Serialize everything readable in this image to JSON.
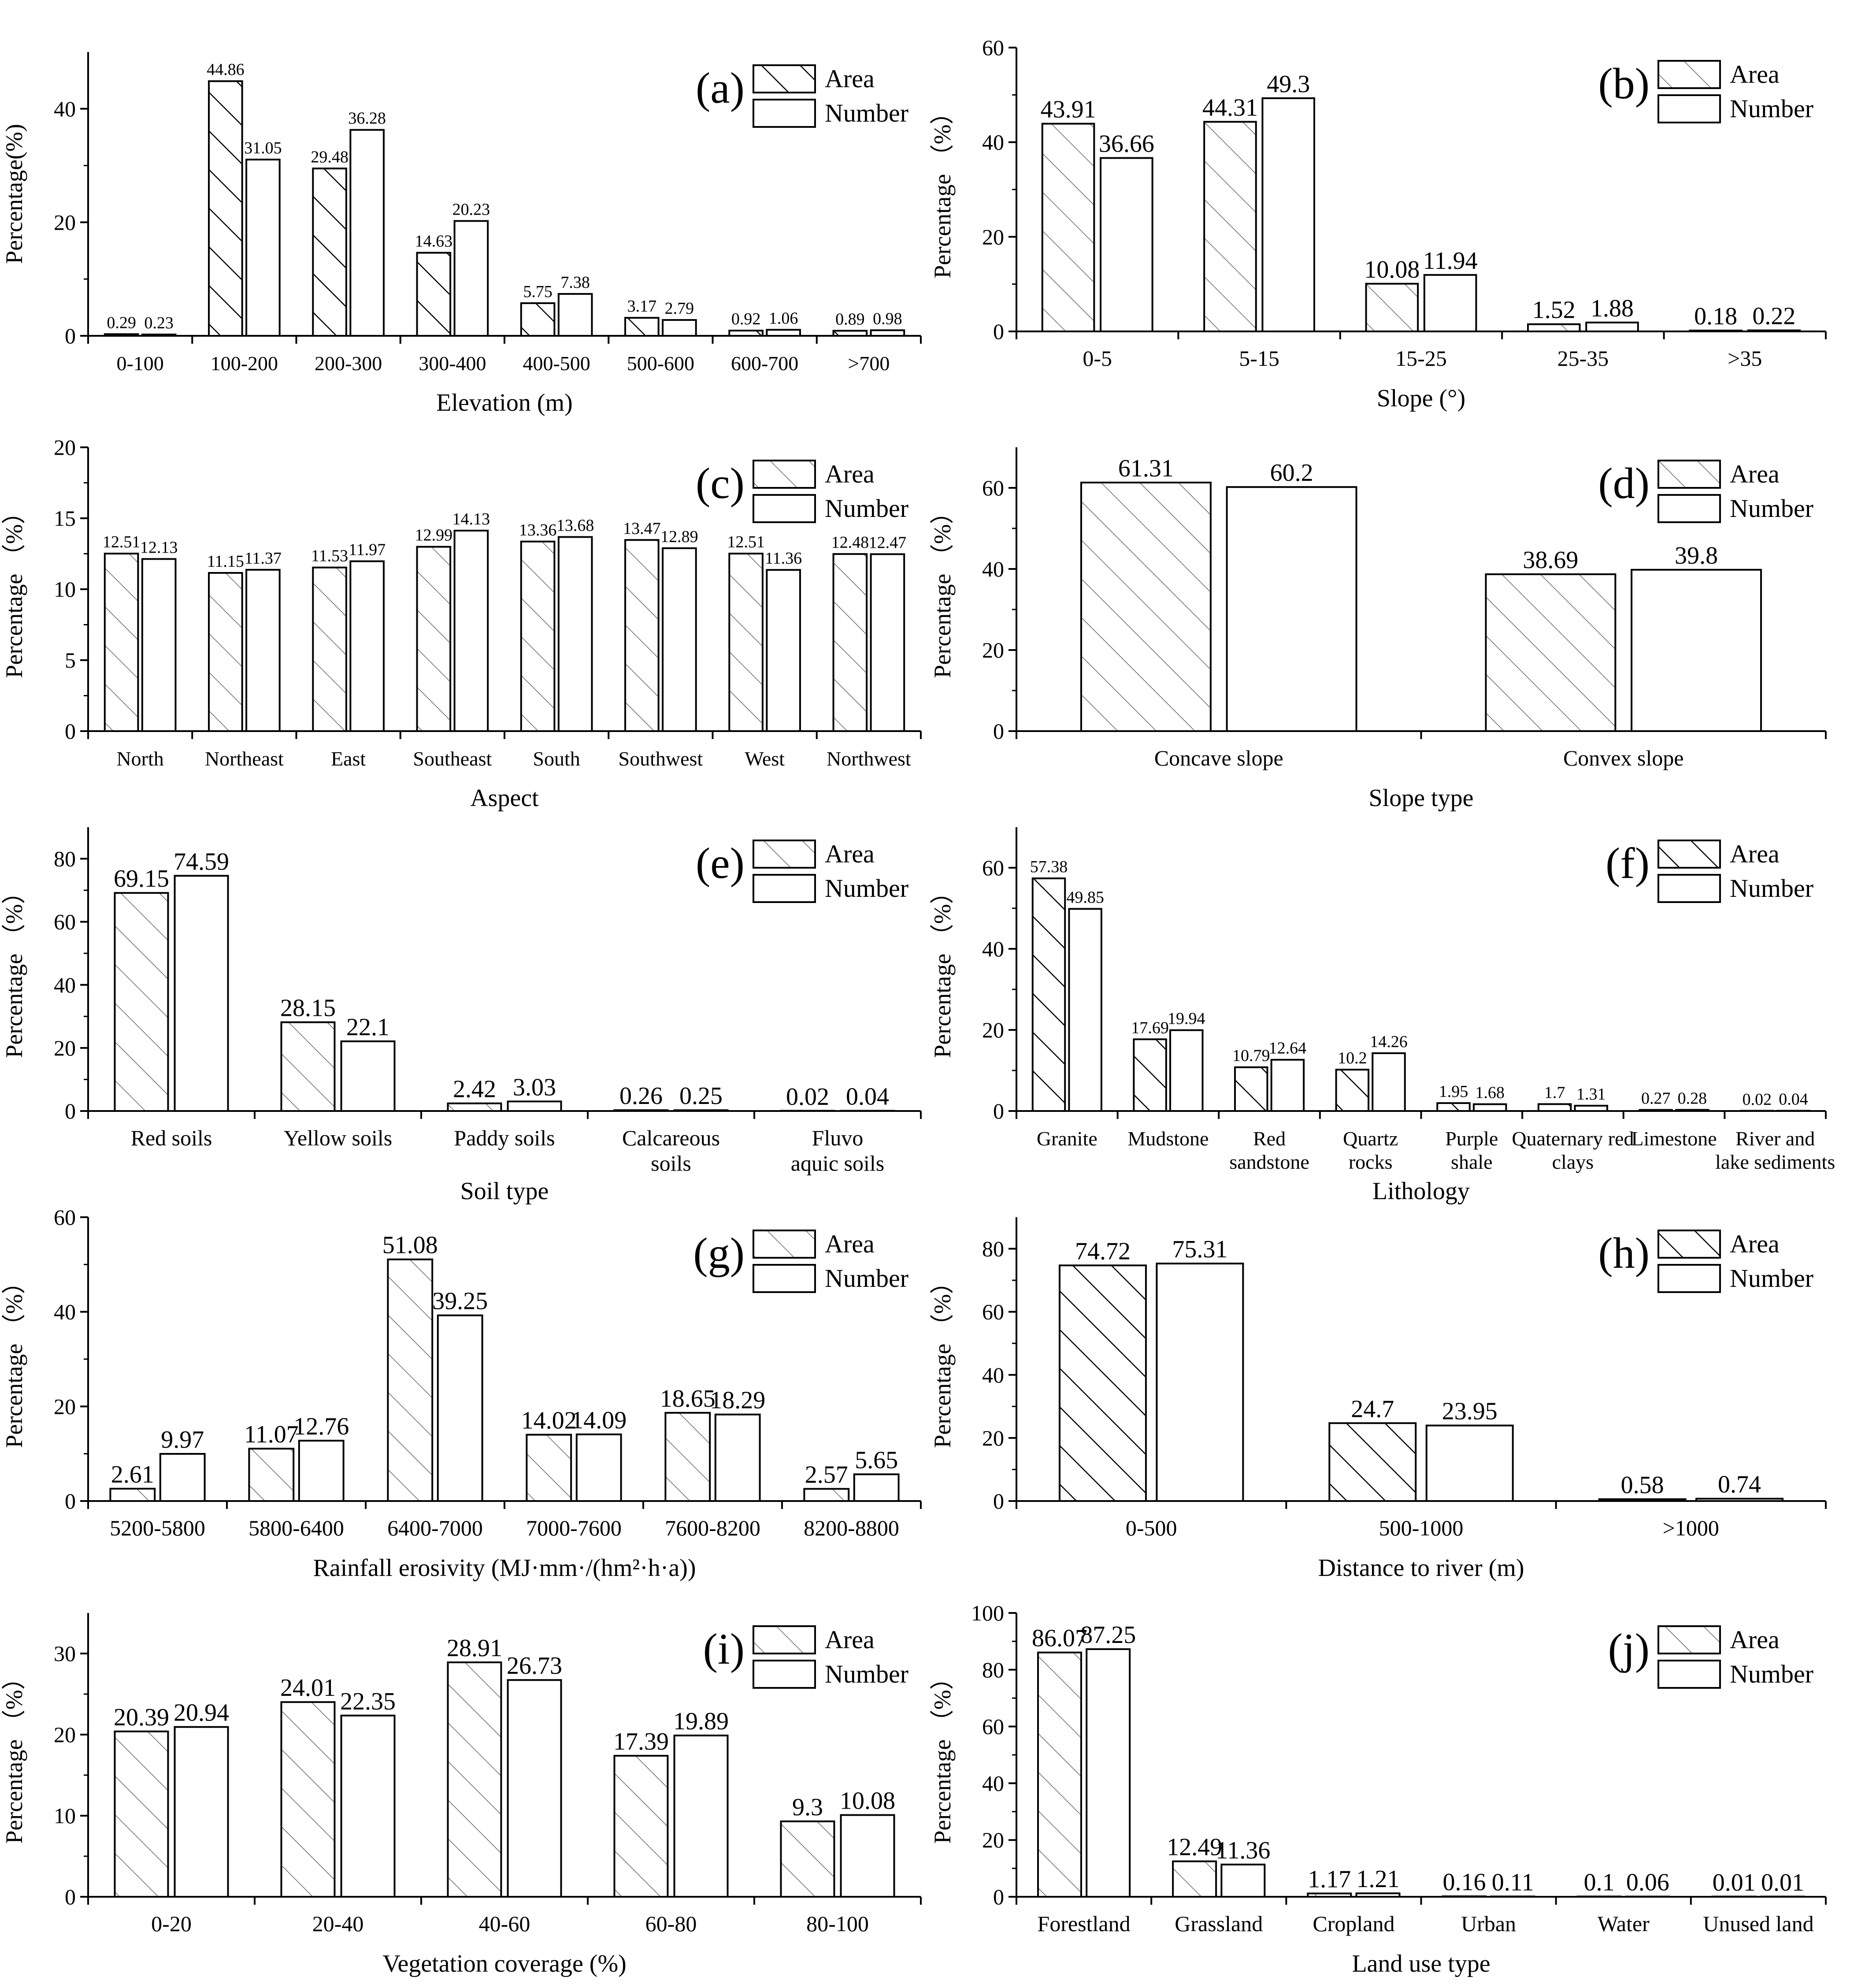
{
  "colors": {
    "axis": "#000000",
    "bar_fill": "#ffffff",
    "bar_stroke": "#000000",
    "hatch": "#000000"
  },
  "chart_data": [
    {
      "id": "a",
      "type": "bar",
      "panel_label": "(a)",
      "hatch": "dense",
      "xlabel": "Elevation (m)",
      "ylabel": "Percentage(%)",
      "ylim": [
        0,
        50
      ],
      "yticks": [
        0,
        20,
        40
      ],
      "categories": [
        "0-100",
        "100-200",
        "200-300",
        "300-400",
        "400-500",
        "500-600",
        "600-700",
        ">700"
      ],
      "series": [
        {
          "name": "Area",
          "values": [
            0.29,
            44.86,
            29.48,
            14.63,
            5.75,
            3.17,
            0.92,
            0.89
          ],
          "labels": [
            "0.29",
            "44.86",
            "29.48",
            "14.63",
            "5.75",
            "3.17",
            "0.92",
            "0.89"
          ]
        },
        {
          "name": "Number",
          "values": [
            0.23,
            31.05,
            36.28,
            20.23,
            7.38,
            2.79,
            1.06,
            0.98
          ],
          "labels": [
            "0.23",
            "31.05",
            "36.28",
            "20.23",
            "7.38",
            "2.79",
            "1.06",
            "0.98"
          ]
        }
      ]
    },
    {
      "id": "b",
      "type": "bar",
      "panel_label": "(b)",
      "hatch": "light",
      "xlabel": "Slope (°)",
      "ylabel": "Percentage （%）",
      "ylim": [
        0,
        60
      ],
      "yticks": [
        0,
        20,
        40,
        60
      ],
      "categories": [
        "0-5",
        "5-15",
        "15-25",
        "25-35",
        ">35"
      ],
      "series": [
        {
          "name": "Area",
          "values": [
            43.91,
            44.31,
            10.08,
            1.52,
            0.18
          ],
          "labels": [
            "43.91",
            "44.31",
            "10.08",
            "1.52",
            "0.18"
          ]
        },
        {
          "name": "Number",
          "values": [
            36.66,
            49.3,
            11.94,
            1.88,
            0.22
          ],
          "labels": [
            "36.66",
            "49.3",
            "11.94",
            "1.88",
            "0.22"
          ]
        }
      ]
    },
    {
      "id": "c",
      "type": "bar",
      "panel_label": "(c)",
      "hatch": "light",
      "xlabel": "Aspect",
      "ylabel": "Percentage （%）",
      "ylim": [
        0,
        20
      ],
      "yticks": [
        0,
        5,
        10,
        15,
        20
      ],
      "categories": [
        "North",
        "Northeast",
        "East",
        "Southeast",
        "South",
        "Southwest",
        "West",
        "Northwest"
      ],
      "series": [
        {
          "name": "Area",
          "values": [
            12.51,
            11.15,
            11.53,
            12.99,
            13.36,
            13.47,
            12.51,
            12.48
          ],
          "labels": [
            "12.51",
            "11.15",
            "11.53",
            "12.99",
            "13.36",
            "13.47",
            "12.51",
            "12.48"
          ]
        },
        {
          "name": "Number",
          "values": [
            12.13,
            11.37,
            11.97,
            14.13,
            13.68,
            12.89,
            11.36,
            12.47
          ],
          "labels": [
            "12.13",
            "11.37",
            "11.97",
            "14.13",
            "13.68",
            "12.89",
            "11.36",
            "12.47"
          ]
        }
      ]
    },
    {
      "id": "d",
      "type": "bar",
      "panel_label": "(d)",
      "hatch": "light",
      "xlabel": "Slope type",
      "ylabel": "Percentage （%）",
      "ylim": [
        0,
        70
      ],
      "yticks": [
        0,
        20,
        40,
        60
      ],
      "categories": [
        "Concave slope",
        "Convex slope"
      ],
      "series": [
        {
          "name": "Area",
          "values": [
            61.31,
            38.69
          ],
          "labels": [
            "61.31",
            "38.69"
          ]
        },
        {
          "name": "Number",
          "values": [
            60.2,
            39.8
          ],
          "labels": [
            "60.2",
            "39.8"
          ]
        }
      ]
    },
    {
      "id": "e",
      "type": "bar",
      "panel_label": "(e)",
      "hatch": "light",
      "xlabel": "Soil type",
      "ylabel": "Percentage （%）",
      "ylim": [
        0,
        90
      ],
      "yticks": [
        0,
        20,
        40,
        60,
        80
      ],
      "categories": [
        "Red soils",
        "Yellow soils",
        "Paddy soils",
        "Calcareous soils",
        "Fluvo aquic soils"
      ],
      "series": [
        {
          "name": "Area",
          "values": [
            69.15,
            28.15,
            2.42,
            0.26,
            0.02
          ],
          "labels": [
            "69.15",
            "28.15",
            "2.42",
            "0.26",
            "0.02"
          ]
        },
        {
          "name": "Number",
          "values": [
            74.59,
            22.1,
            3.03,
            0.25,
            0.04
          ],
          "labels": [
            "74.59",
            "22.1",
            "3.03",
            "0.25",
            "0.04"
          ]
        }
      ]
    },
    {
      "id": "f",
      "type": "bar",
      "panel_label": "(f)",
      "hatch": "dense",
      "xlabel": "Lithology",
      "ylabel": "Percentage （%）",
      "ylim": [
        0,
        70
      ],
      "yticks": [
        0,
        20,
        40,
        60
      ],
      "categories": [
        "Granite",
        "Mudstone",
        "Red sandstone",
        "Quartz rocks",
        "Purple shale",
        "Quaternary red clays",
        "Limestone",
        "River and lake sediments"
      ],
      "series": [
        {
          "name": "Area",
          "values": [
            57.38,
            17.69,
            10.79,
            10.2,
            1.95,
            1.7,
            0.27,
            0.02
          ],
          "labels": [
            "57.38",
            "17.69",
            "10.79",
            "10.2",
            "1.95",
            "1.7",
            "0.27",
            "0.02"
          ]
        },
        {
          "name": "Number",
          "values": [
            49.85,
            19.94,
            12.64,
            14.26,
            1.68,
            1.31,
            0.28,
            0.04
          ],
          "labels": [
            "49.85",
            "19.94",
            "12.64",
            "14.26",
            "1.68",
            "1.31",
            "0.28",
            "0.04"
          ]
        }
      ]
    },
    {
      "id": "g",
      "type": "bar",
      "panel_label": "(g)",
      "hatch": "light",
      "xlabel": "Rainfall erosivity (MJ·mm·/(hm²·h·a))",
      "ylabel": "Percentage （%）",
      "ylim": [
        0,
        60
      ],
      "yticks": [
        0,
        20,
        40,
        60
      ],
      "categories": [
        "5200-5800",
        "5800-6400",
        "6400-7000",
        "7000-7600",
        "7600-8200",
        "8200-8800"
      ],
      "series": [
        {
          "name": "Area",
          "values": [
            2.61,
            11.07,
            51.08,
            14.02,
            18.65,
            2.57
          ],
          "labels": [
            "2.61",
            "11.07",
            "51.08",
            "14.02",
            "18.65",
            "2.57"
          ]
        },
        {
          "name": "Number",
          "values": [
            9.97,
            12.76,
            39.25,
            14.09,
            18.29,
            5.65
          ],
          "labels": [
            "9.97",
            "12.76",
            "39.25",
            "14.09",
            "18.29",
            "5.65"
          ]
        }
      ]
    },
    {
      "id": "h",
      "type": "bar",
      "panel_label": "(h)",
      "hatch": "dense",
      "xlabel": "Distance to river (m)",
      "ylabel": "Percentage （%）",
      "ylim": [
        0,
        90
      ],
      "yticks": [
        0,
        20,
        40,
        60,
        80
      ],
      "categories": [
        "0-500",
        "500-1000",
        ">1000"
      ],
      "series": [
        {
          "name": "Area",
          "values": [
            74.72,
            24.7,
            0.58
          ],
          "labels": [
            "74.72",
            "24.7",
            "0.58"
          ]
        },
        {
          "name": "Number",
          "values": [
            75.31,
            23.95,
            0.74
          ],
          "labels": [
            "75.31",
            "23.95",
            "0.74"
          ]
        }
      ]
    },
    {
      "id": "i",
      "type": "bar",
      "panel_label": "(i)",
      "hatch": "light",
      "xlabel": "Vegetation coverage (%)",
      "ylabel": "Percentage （%）",
      "ylim": [
        0,
        35
      ],
      "yticks": [
        0,
        10,
        20,
        30
      ],
      "categories": [
        "0-20",
        "20-40",
        "40-60",
        "60-80",
        "80-100"
      ],
      "series": [
        {
          "name": "Area",
          "values": [
            20.39,
            24.01,
            28.91,
            17.39,
            9.3
          ],
          "labels": [
            "20.39",
            "24.01",
            "28.91",
            "17.39",
            "9.3"
          ]
        },
        {
          "name": "Number",
          "values": [
            20.94,
            22.35,
            26.73,
            19.89,
            10.08
          ],
          "labels": [
            "20.94",
            "22.35",
            "26.73",
            "19.89",
            "10.08"
          ]
        }
      ]
    },
    {
      "id": "j",
      "type": "bar",
      "panel_label": "(j)",
      "hatch": "light",
      "xlabel": "Land use type",
      "ylabel": "Percentage （%）",
      "ylim": [
        0,
        100
      ],
      "yticks": [
        0,
        20,
        40,
        60,
        80,
        100
      ],
      "categories": [
        "Forestland",
        "Grassland",
        "Cropland",
        "Urban",
        "Water",
        "Unused land"
      ],
      "series": [
        {
          "name": "Area",
          "values": [
            86.07,
            12.49,
            1.17,
            0.16,
            0.1,
            0.01
          ],
          "labels": [
            "86.07",
            "12.49",
            "1.17",
            "0.16",
            "0.1",
            "0.01"
          ]
        },
        {
          "name": "Number",
          "values": [
            87.25,
            11.36,
            1.21,
            0.11,
            0.06,
            0.01
          ],
          "labels": [
            "87.25",
            "11.36",
            "1.21",
            "0.11",
            "0.06",
            "0.01"
          ]
        }
      ]
    }
  ]
}
